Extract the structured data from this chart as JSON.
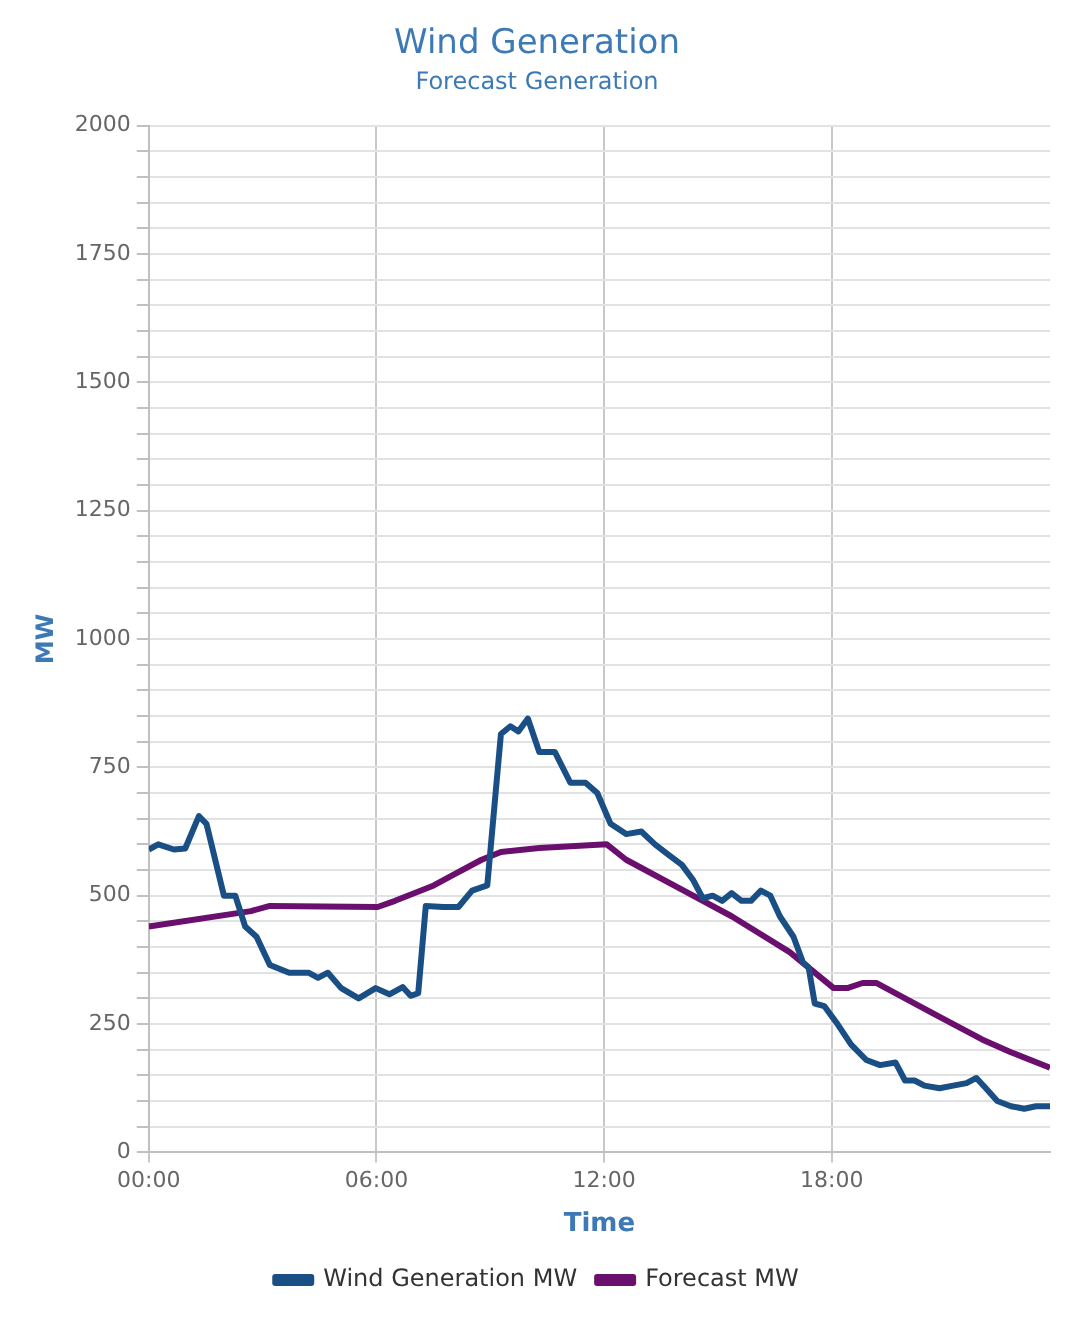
{
  "chart_data": {
    "type": "line",
    "title": "Wind Generation",
    "subtitle": "Forecast Generation",
    "xlabel": "Time",
    "ylabel": "MW",
    "xlim": [
      0,
      23.75
    ],
    "xticks": [
      {
        "value": 0,
        "label": "00:00"
      },
      {
        "value": 6,
        "label": "06:00"
      },
      {
        "value": 12,
        "label": "12:00"
      },
      {
        "value": 18,
        "label": "18:00"
      }
    ],
    "ylim": [
      0,
      2000
    ],
    "yticks": [
      0,
      {
        "value": 50,
        "label": null
      },
      {
        "value": 100,
        "label": null
      },
      {
        "value": 150,
        "label": null
      },
      {
        "value": 200,
        "label": null
      },
      250,
      {
        "value": 300,
        "label": null
      },
      {
        "value": 350,
        "label": null
      },
      {
        "value": 400,
        "label": null
      },
      {
        "value": 450,
        "label": null
      },
      500,
      {
        "value": 550,
        "label": null
      },
      {
        "value": 600,
        "label": null
      },
      {
        "value": 650,
        "label": null
      },
      {
        "value": 700,
        "label": null
      },
      750,
      {
        "value": 800,
        "label": null
      },
      {
        "value": 850,
        "label": null
      },
      {
        "value": 900,
        "label": null
      },
      {
        "value": 950,
        "label": null
      },
      1000,
      {
        "value": 1050,
        "label": null
      },
      {
        "value": 1100,
        "label": null
      },
      {
        "value": 1150,
        "label": null
      },
      {
        "value": 1200,
        "label": null
      },
      1250,
      {
        "value": 1300,
        "label": null
      },
      {
        "value": 1350,
        "label": null
      },
      {
        "value": 1400,
        "label": null
      },
      {
        "value": 1450,
        "label": null
      },
      1500,
      {
        "value": 1550,
        "label": null
      },
      {
        "value": 1600,
        "label": null
      },
      {
        "value": 1650,
        "label": null
      },
      {
        "value": 1700,
        "label": null
      },
      1750,
      {
        "value": 1800,
        "label": null
      },
      {
        "value": 1850,
        "label": null
      },
      {
        "value": 1900,
        "label": null
      },
      {
        "value": 1950,
        "label": null
      },
      2000
    ],
    "grid": true,
    "legend": "bottom",
    "marker": "none",
    "line_style": "solid",
    "series": [
      {
        "name": "Wind Generation MW",
        "color": "#1a4f86",
        "x": [
          0,
          0.25,
          0.66,
          0.96,
          1.32,
          1.52,
          1.98,
          2.28,
          2.54,
          2.84,
          3.19,
          3.7,
          4.21,
          4.46,
          4.72,
          5.07,
          5.53,
          5.98,
          6.34,
          6.69,
          6.9,
          7.1,
          7.3,
          7.76,
          8.16,
          8.52,
          8.92,
          9.28,
          9.53,
          9.74,
          9.99,
          10.29,
          10.7,
          11.11,
          11.51,
          11.82,
          12.17,
          12.58,
          12.98,
          13.34,
          13.69,
          14.05,
          14.35,
          14.6,
          14.86,
          15.11,
          15.36,
          15.62,
          15.87,
          16.13,
          16.38,
          16.63,
          16.99,
          17.24,
          17.39,
          17.55,
          17.8,
          18.15,
          18.51,
          18.91,
          19.27,
          19.68,
          19.93,
          20.18,
          20.44,
          20.84,
          21.2,
          21.55,
          21.81,
          22.06,
          22.36,
          22.72,
          23.07,
          23.38,
          23.75
        ],
        "values": [
          590,
          600,
          590,
          592,
          655,
          640,
          500,
          500,
          440,
          420,
          365,
          350,
          350,
          340,
          350,
          320,
          300,
          320,
          308,
          322,
          305,
          310,
          480,
          478,
          478,
          510,
          520,
          815,
          830,
          820,
          845,
          780,
          780,
          720,
          720,
          700,
          640,
          620,
          625,
          600,
          580,
          560,
          530,
          495,
          500,
          490,
          505,
          490,
          490,
          510,
          500,
          460,
          420,
          370,
          360,
          290,
          285,
          250,
          210,
          180,
          170,
          175,
          140,
          140,
          130,
          125,
          130,
          135,
          145,
          125,
          100,
          90,
          85,
          90,
          90
        ]
      },
      {
        "name": "Forecast MW",
        "color": "#6b0f6e",
        "x": [
          0,
          2.69,
          3.19,
          6.03,
          6.49,
          7.51,
          8.01,
          8.77,
          9.28,
          10.29,
          12.07,
          12.58,
          13.84,
          15.36,
          16.89,
          18.05,
          18.41,
          18.81,
          19.17,
          19.93,
          20.94,
          21.96,
          22.72,
          23.75
        ],
        "values": [
          440,
          470,
          480,
          478,
          490,
          520,
          540,
          570,
          585,
          593,
          600,
          570,
          520,
          460,
          390,
          320,
          320,
          330,
          330,
          300,
          260,
          220,
          195,
          165
        ]
      }
    ]
  }
}
